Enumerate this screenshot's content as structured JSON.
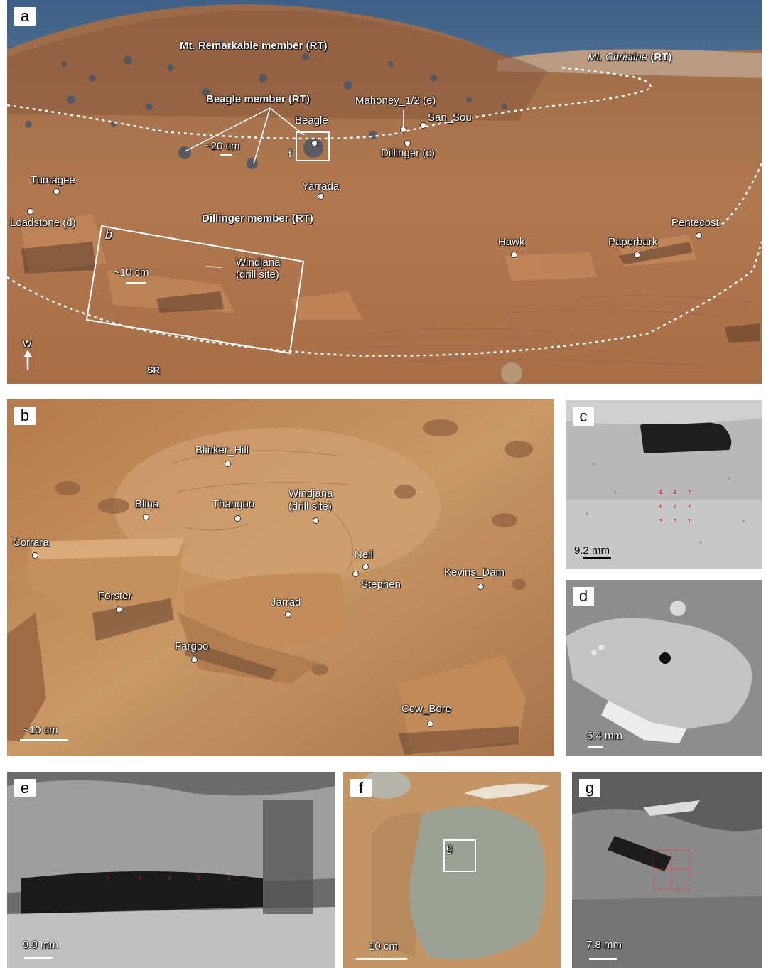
{
  "panel_a": {
    "letter": "a",
    "members": {
      "mt_remarkable": "Mt. Remarkable member (RT)",
      "mt_christine_name": "Mt. Christine",
      "mt_christine_suffix": " (RT)",
      "beagle_member": "Beagle member (RT)",
      "dillinger_member": "Dillinger member (RT)"
    },
    "targets": {
      "beagle": "Beagle",
      "mahoney": "Mahoney_1/2 (e)",
      "san_sou": "San_Sou",
      "dillinger": "Dillinger (c)",
      "yarrada": "Yarrada",
      "tumagee": "Tumagee",
      "loadstone": "Loadstone (d)",
      "hawk": "Hawk",
      "paperbark": "Paperbark",
      "pentecost": "Pentecost",
      "windjana": "Windjana",
      "windjana_sub": "(drill site)"
    },
    "scale_20": "~20 cm",
    "scale_10": "~10 cm",
    "inset_b": "b",
    "inset_f": "f",
    "north": "W",
    "sr": "SR"
  },
  "panel_b": {
    "letter": "b",
    "targets": {
      "blinker_hill": "Blinker_Hill",
      "blina": "Blina",
      "thangoo": "Thangoo",
      "windjana": "Windjana",
      "windjana_sub": "(drill site)",
      "corrara": "Corrara",
      "neil": "Neil",
      "stephen": "Stephen",
      "kevins_dam": "Kevins_Dam",
      "forster": "Forster",
      "jarrad": "Jarrad",
      "fargoo": "Fargoo",
      "cow_bore": "Cow_Bore"
    },
    "scale": "~10 cm"
  },
  "panel_c": {
    "letter": "c",
    "scale": "9.2 mm",
    "grid": [
      "9",
      "8",
      "7",
      "6",
      "5",
      "4",
      "3",
      "2",
      "1"
    ]
  },
  "panel_d": {
    "letter": "d",
    "scale": "6.4 mm"
  },
  "panel_e": {
    "letter": "e",
    "scale": "9.9 mm",
    "points": [
      "5",
      "4",
      "3",
      "2",
      "1"
    ]
  },
  "panel_f": {
    "letter": "f",
    "scale": "10 cm",
    "inset_g": "g"
  },
  "panel_g": {
    "letter": "g",
    "scale": "7.8 mm"
  }
}
